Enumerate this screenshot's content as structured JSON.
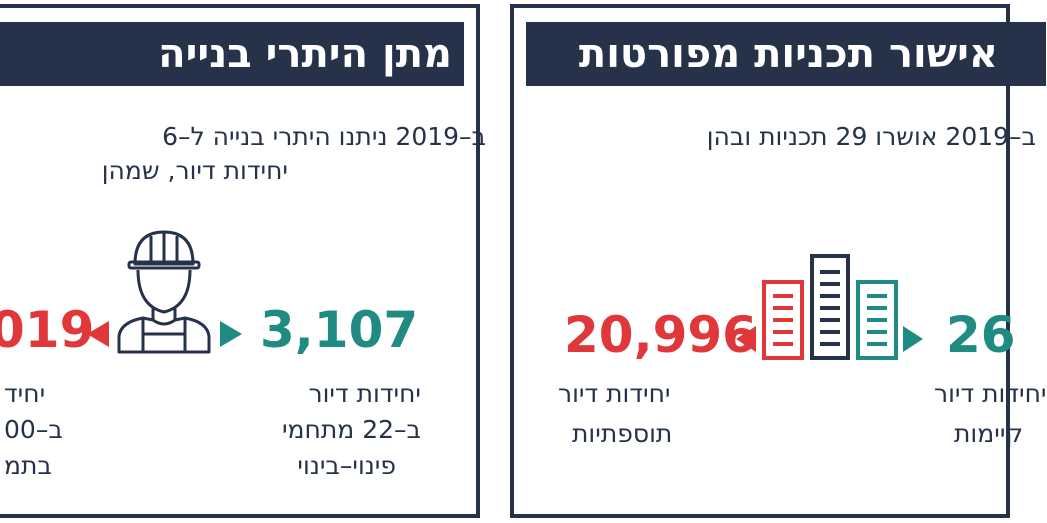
{
  "left_panel": {
    "title": "מתן היתרי בנייה",
    "intro_line1": "ב–2019 ניתנו היתרי בנייה ל–6",
    "intro_line2": "יחידות דיור, שמהן",
    "stat_right": {
      "number": "3,107",
      "line1": "יחידות דיור",
      "line2": "ב–22 מתחמי",
      "line3": "פינוי–בינוי"
    },
    "stat_left": {
      "number": "019",
      "line1": "יחיד",
      "line2": "ב–00",
      "line3": "בתמ"
    }
  },
  "right_panel": {
    "title": "אישור תכניות מפורטות",
    "intro_line1": "ב–2019 אושרו 29 תכניות ובהן",
    "stat_left": {
      "number": "20,996",
      "line1": "יחידות דיור",
      "line2": "תוספתיות"
    },
    "stat_right": {
      "number": "26",
      "line1": "יחידות דיור",
      "line2": "קיימות"
    }
  },
  "colors": {
    "navy": "#26324a",
    "red": "#e0373b",
    "teal": "#1f8b82"
  },
  "icons": {
    "worker": "construction-worker-icon",
    "buildings": "buildings-icon"
  }
}
